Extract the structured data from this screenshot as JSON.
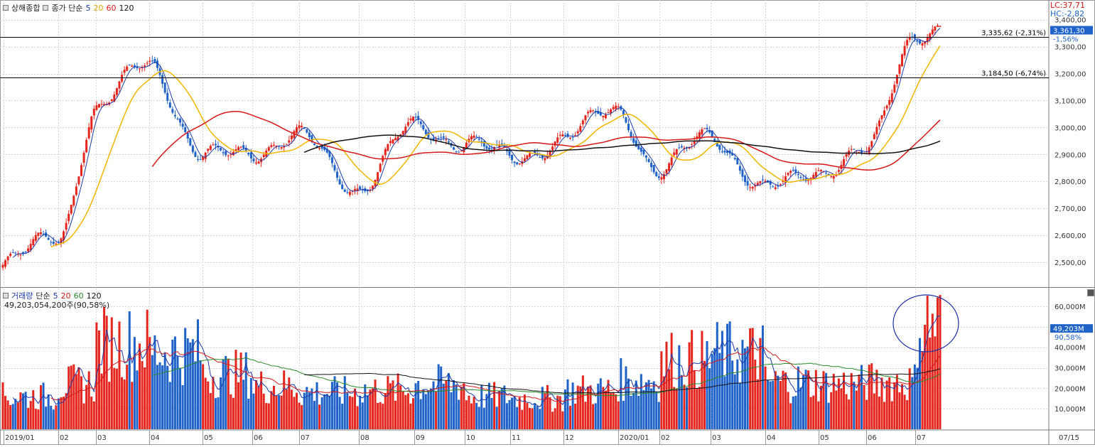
{
  "header": {
    "index_name": "상해종합",
    "price_label": "종가 단순",
    "ma_labels": [
      "5",
      "20",
      "60",
      "120"
    ],
    "volume_label": "거래량",
    "volume_ma_label": "단순",
    "volume_ma_labels": [
      "5",
      "20",
      "60",
      "120"
    ],
    "volume_readout": "49,203,054,200주(90,58%)",
    "lc_readout": "LC:37,71",
    "hc_readout": "HC:-2,82"
  },
  "colors": {
    "up": "#e5261f",
    "down": "#1f63c9",
    "ma5_price": "#1a3aa8",
    "ma20": "#f2b600",
    "ma60": "#d81818",
    "ma120": "#111111",
    "vol_ma5": "#1a3aa8",
    "vol_ma20": "#d81818",
    "vol_ma60": "#2a8a2a",
    "vol_ma120": "#111111",
    "grid": "#d7d7d7",
    "tag_bg": "#1f63c9"
  },
  "chart_data": [
    {
      "type": "candlestick",
      "title": "상해종합",
      "y_ticks": [
        "2,500,00",
        "2,600,00",
        "2,700,00",
        "2,800,00",
        "2,900,00",
        "3,000,00",
        "3,100,00",
        "3,200,00",
        "3,300,00",
        "3,400,00"
      ],
      "ylim": [
        2410,
        3460
      ],
      "x_ticks": [
        "2019/01",
        "02",
        "03",
        "04",
        "05",
        "06",
        "07",
        "08",
        "09",
        "10",
        "11",
        "12",
        "2020/01",
        "02",
        "03",
        "04",
        "05",
        "06",
        "07"
      ],
      "last_date_label": "07/15",
      "current_price": "3,361,30",
      "current_change": "-1,56%",
      "reference_lines": [
        {
          "value": 3335.62,
          "label": "3,335,62 (-2,31%)"
        },
        {
          "value": 3184.5,
          "label": "3,184,50 (-6,74%)"
        }
      ],
      "monthly_path": [
        {
          "month": "2019/01",
          "close": 2490
        },
        {
          "month": "2019/02",
          "close": 2600
        },
        {
          "month": "2019/03",
          "close": 3060
        },
        {
          "month": "2019/04",
          "close": 3250
        },
        {
          "month": "2019/05",
          "close": 2880
        },
        {
          "month": "2019/06",
          "close": 2920
        },
        {
          "month": "2019/07",
          "close": 2960
        },
        {
          "month": "2019/08",
          "close": 2780
        },
        {
          "month": "2019/09",
          "close": 3000
        },
        {
          "month": "2019/10",
          "close": 2950
        },
        {
          "month": "2019/11",
          "close": 2880
        },
        {
          "month": "2019/12",
          "close": 2960
        },
        {
          "month": "2020/01",
          "close": 3070
        },
        {
          "month": "2020/02",
          "close": 2830
        },
        {
          "month": "2020/03",
          "close": 2980
        },
        {
          "month": "2020/04",
          "close": 2760
        },
        {
          "month": "2020/05",
          "close": 2850
        },
        {
          "month": "2020/06",
          "close": 2900
        },
        {
          "month": "2020/07",
          "close": 3361
        }
      ]
    },
    {
      "type": "bar",
      "title": "거래량",
      "y_ticks": [
        "10,000M",
        "20,000M",
        "30,000M",
        "40,000M",
        "50,000M",
        "60,000M"
      ],
      "ylim": [
        0,
        68000
      ],
      "unit": "M",
      "current_volume": "49,203M",
      "current_ratio": "90,58%",
      "monthly_avg_volume": [
        {
          "month": "2019/01",
          "value": 16000
        },
        {
          "month": "2019/02",
          "value": 22000
        },
        {
          "month": "2019/03",
          "value": 42000
        },
        {
          "month": "2019/04",
          "value": 38000
        },
        {
          "month": "2019/05",
          "value": 27000
        },
        {
          "month": "2019/06",
          "value": 21000
        },
        {
          "month": "2019/07",
          "value": 18000
        },
        {
          "month": "2019/08",
          "value": 19000
        },
        {
          "month": "2019/09",
          "value": 22000
        },
        {
          "month": "2019/10",
          "value": 16000
        },
        {
          "month": "2019/11",
          "value": 15000
        },
        {
          "month": "2019/12",
          "value": 19000
        },
        {
          "month": "2020/01",
          "value": 24000
        },
        {
          "month": "2020/02",
          "value": 34000
        },
        {
          "month": "2020/03",
          "value": 37000
        },
        {
          "month": "2020/04",
          "value": 23000
        },
        {
          "month": "2020/05",
          "value": 22000
        },
        {
          "month": "2020/06",
          "value": 23000
        },
        {
          "month": "2020/07",
          "value": 52000
        }
      ]
    }
  ]
}
